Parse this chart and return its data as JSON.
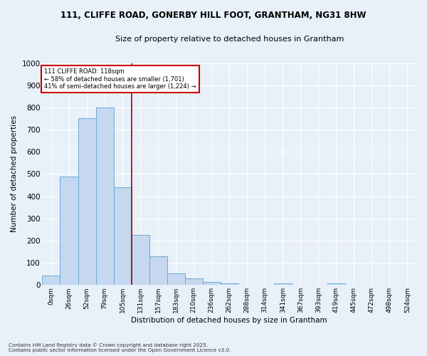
{
  "title_line1": "111, CLIFFE ROAD, GONERBY HILL FOOT, GRANTHAM, NG31 8HW",
  "title_line2": "Size of property relative to detached houses in Grantham",
  "xlabel": "Distribution of detached houses by size in Grantham",
  "ylabel": "Number of detached properties",
  "bar_color": "#c5d8f0",
  "bar_edge_color": "#6aaad4",
  "background_color": "#e8f0fa",
  "grid_color": "#ffffff",
  "categories": [
    "0sqm",
    "26sqm",
    "52sqm",
    "79sqm",
    "105sqm",
    "131sqm",
    "157sqm",
    "183sqm",
    "210sqm",
    "236sqm",
    "262sqm",
    "288sqm",
    "314sqm",
    "341sqm",
    "367sqm",
    "393sqm",
    "419sqm",
    "445sqm",
    "472sqm",
    "498sqm",
    "524sqm"
  ],
  "values": [
    42,
    490,
    750,
    800,
    440,
    225,
    130,
    52,
    30,
    13,
    7,
    0,
    0,
    7,
    0,
    0,
    7,
    0,
    0,
    0,
    0
  ],
  "ylim": [
    0,
    1000
  ],
  "yticks": [
    0,
    100,
    200,
    300,
    400,
    500,
    600,
    700,
    800,
    900,
    1000
  ],
  "property_line_x": 4.5,
  "annotation_title": "111 CLIFFE ROAD: 118sqm",
  "annotation_line2": "← 58% of detached houses are smaller (1,701)",
  "annotation_line3": "41% of semi-detached houses are larger (1,224) →",
  "annotation_box_color": "#ffffff",
  "annotation_box_edge": "#cc0000",
  "property_line_color": "#aa0000",
  "footer_line1": "Contains HM Land Registry data © Crown copyright and database right 2025.",
  "footer_line2": "Contains public sector information licensed under the Open Government Licence v3.0."
}
